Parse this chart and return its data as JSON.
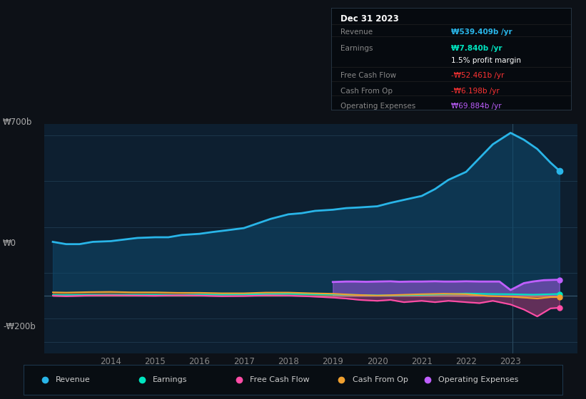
{
  "bg_color": "#0d1117",
  "plot_bg_color": "#0d1f30",
  "legend": [
    "Revenue",
    "Earnings",
    "Free Cash Flow",
    "Cash From Op",
    "Operating Expenses"
  ],
  "legend_colors": [
    "#29b5e8",
    "#00e5c0",
    "#ff4da6",
    "#f0a030",
    "#bf5fff"
  ],
  "tooltip_title": "Dec 31 2023",
  "tooltip_rows": [
    {
      "label": "Revenue",
      "value": "₩539.409b /yr",
      "lcolor": "#888888",
      "vcolor": "#29b5e8"
    },
    {
      "label": "Earnings",
      "value": "₩7.840b /yr",
      "lcolor": "#888888",
      "vcolor": "#00e5c0"
    },
    {
      "label": "",
      "value": "1.5% profit margin",
      "lcolor": "#888888",
      "vcolor": "#ffffff"
    },
    {
      "label": "Free Cash Flow",
      "value": "-₩52.461b /yr",
      "lcolor": "#888888",
      "vcolor": "#ff3333"
    },
    {
      "label": "Cash From Op",
      "value": "-₩6.198b /yr",
      "lcolor": "#888888",
      "vcolor": "#ff3333"
    },
    {
      "label": "Operating Expenses",
      "value": "₩69.884b /yr",
      "lcolor": "#888888",
      "vcolor": "#bf5fff"
    }
  ],
  "x_ticks": [
    2014,
    2015,
    2016,
    2017,
    2018,
    2019,
    2020,
    2021,
    2022,
    2023
  ],
  "x_min": 2012.5,
  "x_max": 2024.5,
  "y_min": -250,
  "y_max": 750,
  "ylabel_700": "₩700b",
  "ylabel_0": "₩0",
  "ylabel_neg200": "-₩200b",
  "revenue_x": [
    2012.7,
    2013.0,
    2013.3,
    2013.6,
    2014.0,
    2014.3,
    2014.6,
    2015.0,
    2015.3,
    2015.6,
    2016.0,
    2016.3,
    2016.6,
    2017.0,
    2017.3,
    2017.6,
    2018.0,
    2018.3,
    2018.6,
    2019.0,
    2019.3,
    2019.6,
    2020.0,
    2020.3,
    2020.6,
    2021.0,
    2021.3,
    2021.6,
    2022.0,
    2022.3,
    2022.6,
    2023.0,
    2023.3,
    2023.6,
    2023.9,
    2024.1
  ],
  "revenue_y": [
    235,
    225,
    225,
    235,
    238,
    245,
    252,
    255,
    255,
    265,
    270,
    278,
    285,
    295,
    315,
    335,
    355,
    360,
    370,
    375,
    382,
    385,
    390,
    405,
    418,
    435,
    465,
    505,
    540,
    600,
    660,
    710,
    680,
    640,
    580,
    545
  ],
  "earnings_x": [
    2012.7,
    2013.0,
    2013.5,
    2014.0,
    2014.5,
    2015.0,
    2015.5,
    2016.0,
    2016.5,
    2017.0,
    2017.5,
    2018.0,
    2018.5,
    2019.0,
    2019.5,
    2020.0,
    2020.5,
    2021.0,
    2021.5,
    2022.0,
    2022.5,
    2023.0,
    2023.5,
    2024.1
  ],
  "earnings_y": [
    3,
    3,
    4,
    4,
    4,
    4,
    3,
    5,
    5,
    6,
    7,
    9,
    7,
    6,
    4,
    2,
    2,
    4,
    7,
    10,
    8,
    7,
    5,
    8
  ],
  "fcf_x": [
    2012.7,
    2013.0,
    2013.5,
    2014.0,
    2014.5,
    2015.0,
    2015.5,
    2016.0,
    2016.5,
    2017.0,
    2017.5,
    2018.0,
    2018.5,
    2019.0,
    2019.3,
    2019.6,
    2020.0,
    2020.3,
    2020.6,
    2021.0,
    2021.3,
    2021.6,
    2022.0,
    2022.3,
    2022.6,
    2023.0,
    2023.3,
    2023.6,
    2023.9,
    2024.1
  ],
  "fcf_y": [
    0,
    -2,
    1,
    2,
    1,
    0,
    2,
    1,
    -2,
    -1,
    2,
    1,
    -3,
    -8,
    -12,
    -18,
    -22,
    -18,
    -28,
    -22,
    -28,
    -22,
    -28,
    -32,
    -22,
    -38,
    -60,
    -90,
    -55,
    -52
  ],
  "cfop_x": [
    2012.7,
    2013.0,
    2013.5,
    2014.0,
    2014.5,
    2015.0,
    2015.5,
    2016.0,
    2016.5,
    2017.0,
    2017.5,
    2018.0,
    2018.5,
    2019.0,
    2019.5,
    2020.0,
    2020.5,
    2021.0,
    2021.5,
    2022.0,
    2022.5,
    2023.0,
    2023.3,
    2023.6,
    2023.9,
    2024.1
  ],
  "cfop_y": [
    15,
    14,
    16,
    17,
    15,
    15,
    13,
    13,
    11,
    11,
    14,
    14,
    11,
    9,
    4,
    1,
    4,
    7,
    9,
    7,
    -1,
    -4,
    -8,
    -12,
    -6,
    -6
  ],
  "opex_x": [
    2019.0,
    2019.3,
    2019.5,
    2019.75,
    2020.0,
    2020.3,
    2020.5,
    2020.75,
    2021.0,
    2021.3,
    2021.5,
    2021.75,
    2022.0,
    2022.3,
    2022.5,
    2022.75,
    2023.0,
    2023.3,
    2023.5,
    2023.75,
    2024.1
  ],
  "opex_y": [
    60,
    62,
    62,
    61,
    62,
    63,
    61,
    62,
    62,
    63,
    62,
    62,
    63,
    62,
    62,
    62,
    25,
    55,
    62,
    68,
    70
  ]
}
